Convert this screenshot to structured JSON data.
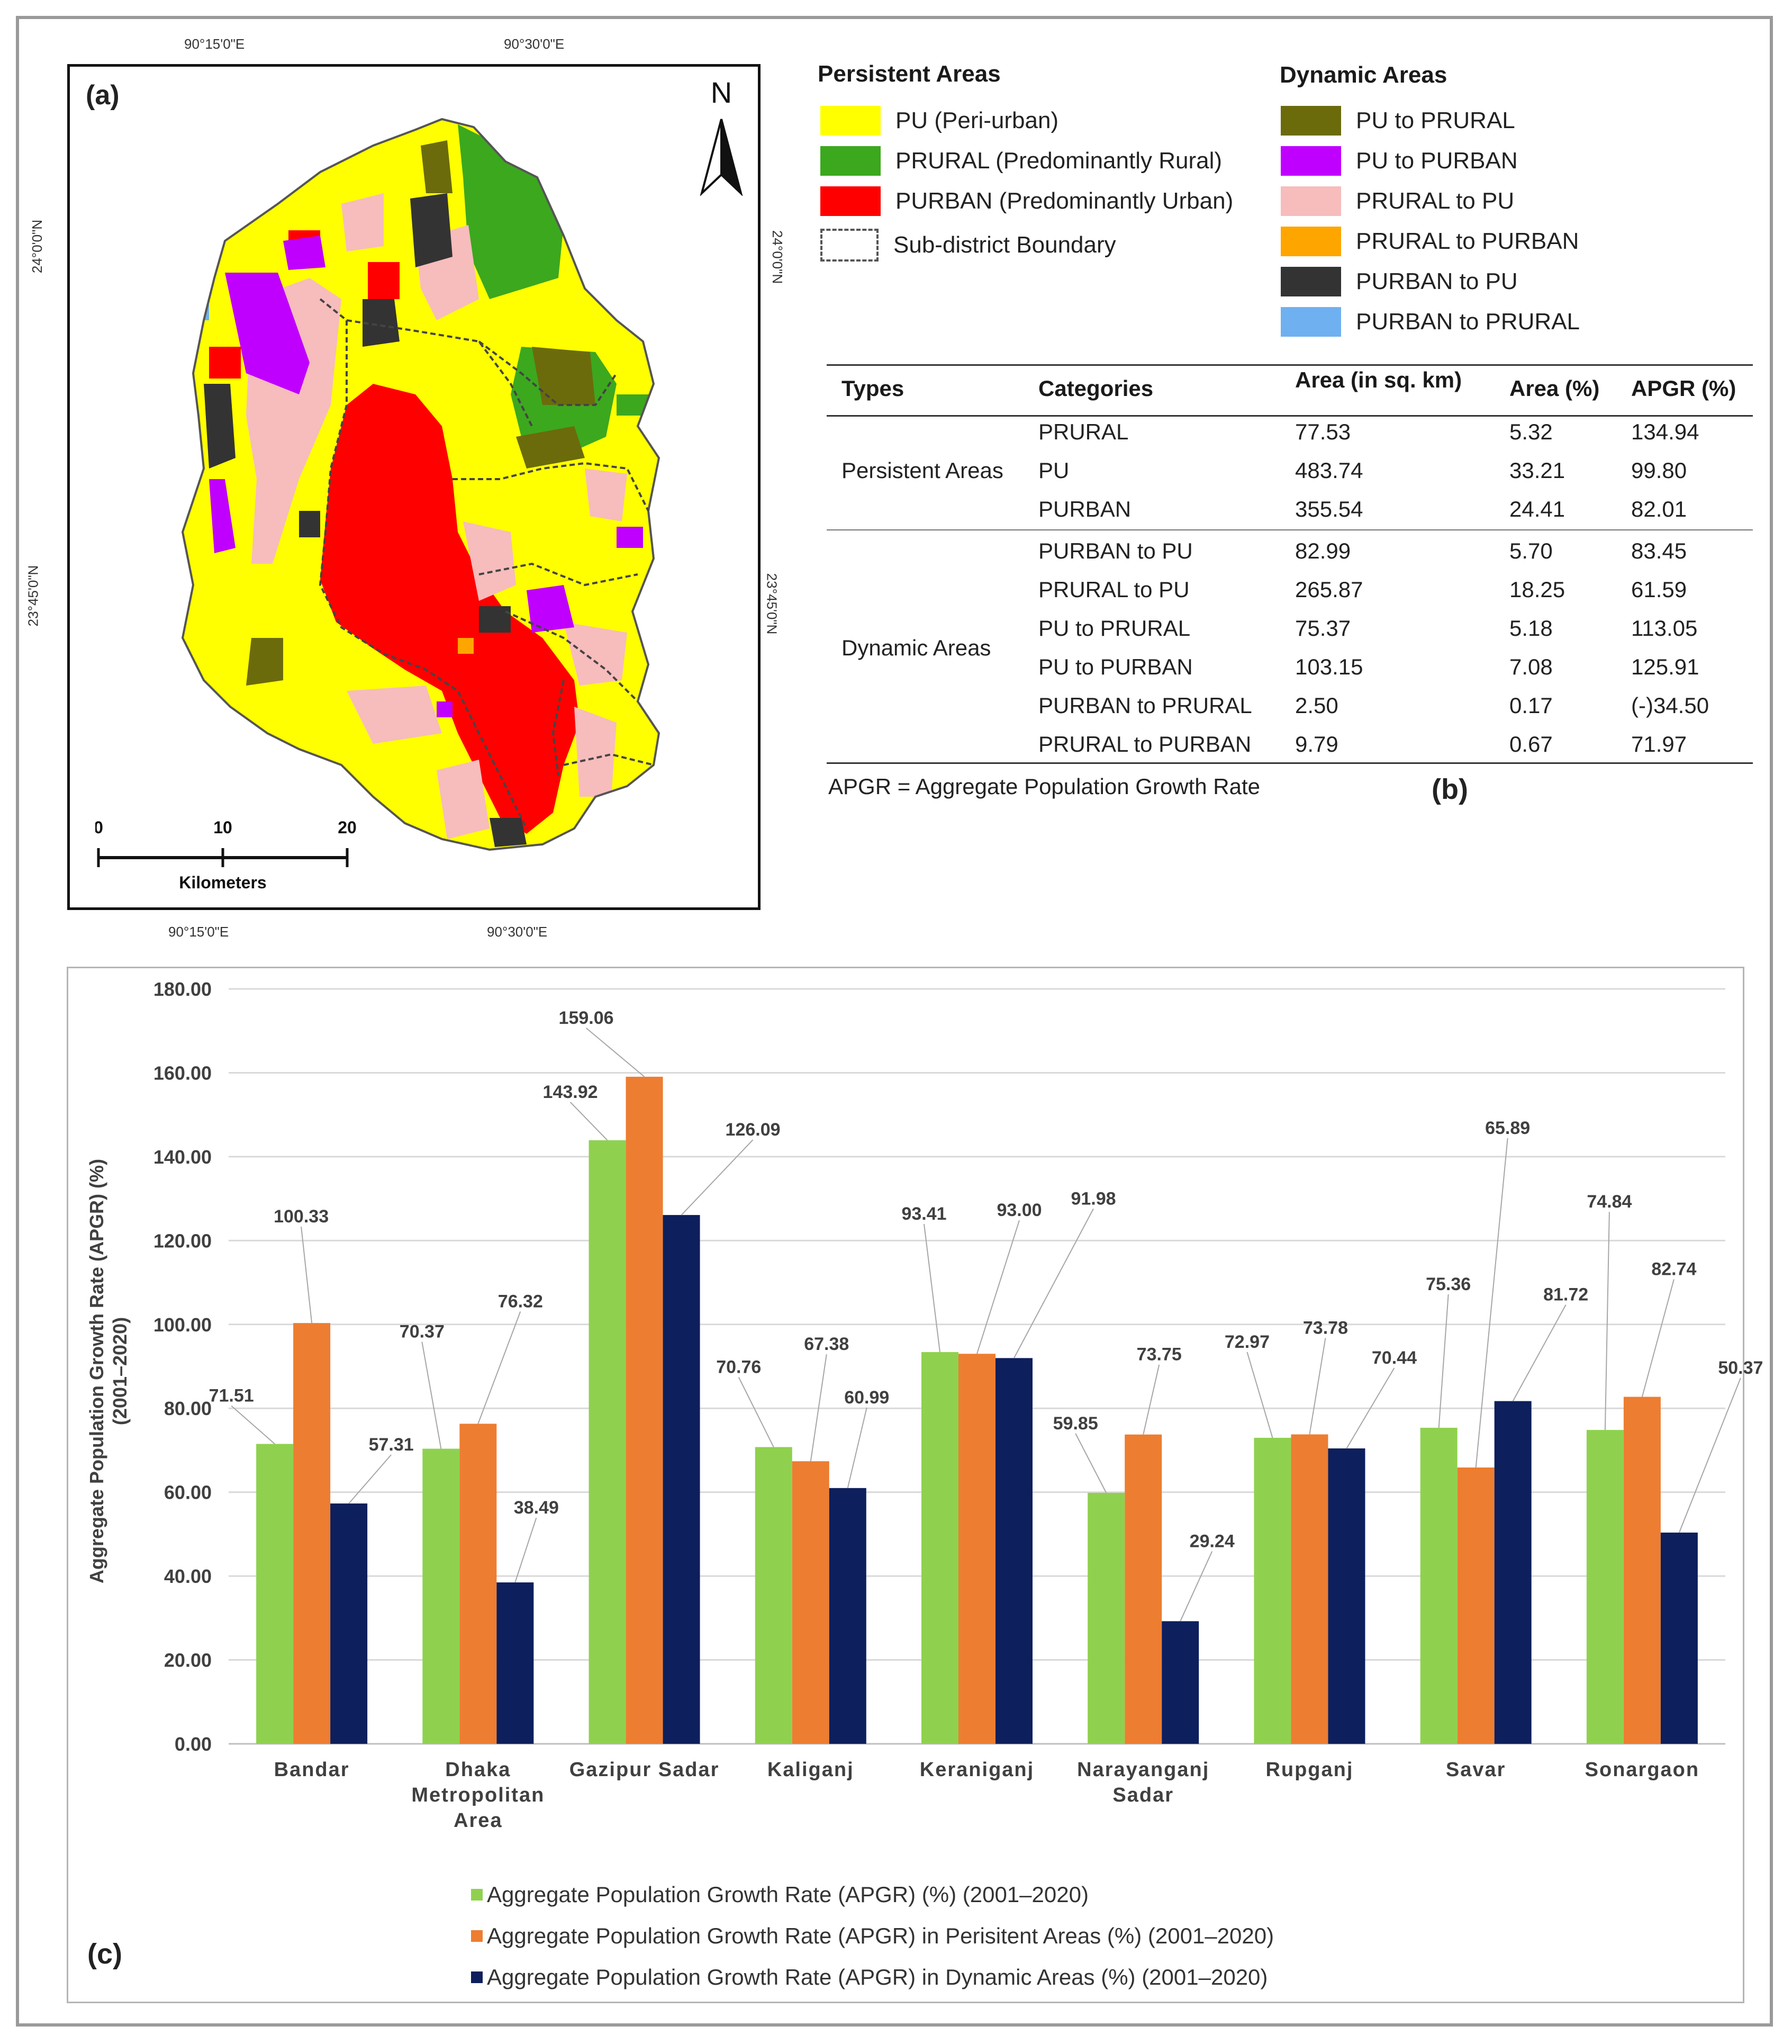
{
  "map": {
    "panel_label": "(a)",
    "north_label": "N",
    "coords": {
      "top1": "90°15'0\"E",
      "top2": "90°30'0\"E",
      "bottom1": "90°15'0\"E",
      "bottom2": "90°30'0\"E",
      "left1": "24°0'0\"N",
      "left2": "23°45'0\"N",
      "right1": "24°0'0\"N",
      "right2": "23°45'0\"N"
    },
    "scale": {
      "t0": "0",
      "t1": "10",
      "t2": "20",
      "unit": "Kilometers"
    }
  },
  "legend": {
    "persistent_title": "Persistent Areas",
    "persistent": [
      {
        "label": "PU (Peri-urban)",
        "color": "#ffff00"
      },
      {
        "label": "PRURAL (Predominantly Rural)",
        "color": "#3ca81e"
      },
      {
        "label": "PURBAN (Predominantly Urban)",
        "color": "#ff0000"
      },
      {
        "label": "Sub-district Boundary",
        "color": "#ffffff"
      }
    ],
    "dynamic_title": "Dynamic Areas",
    "dynamic": [
      {
        "label": "PU to PRURAL",
        "color": "#6b6b0c"
      },
      {
        "label": "PU to PURBAN",
        "color": "#c000ff"
      },
      {
        "label": "PRURAL to PU",
        "color": "#f7bcbc"
      },
      {
        "label": "PRURAL to PURBAN",
        "color": "#ffa500"
      },
      {
        "label": "PURBAN to PU",
        "color": "#333333"
      },
      {
        "label": "PURBAN to PRURAL",
        "color": "#6fb0f0"
      }
    ]
  },
  "table": {
    "headers": [
      "Types",
      "Categories",
      "Area (in sq. km)",
      "Area (%)",
      "APGR (%)"
    ],
    "groups": [
      {
        "type": "Persistent Areas",
        "rows": [
          [
            "PRURAL",
            "77.53",
            "5.32",
            "134.94"
          ],
          [
            "PU",
            "483.74",
            "33.21",
            "99.80"
          ],
          [
            "PURBAN",
            "355.54",
            "24.41",
            "82.01"
          ]
        ]
      },
      {
        "type": "Dynamic Areas",
        "rows": [
          [
            "PURBAN to PU",
            "82.99",
            "5.70",
            "83.45"
          ],
          [
            "PRURAL to PU",
            "265.87",
            "18.25",
            "61.59"
          ],
          [
            "PU to PRURAL",
            "75.37",
            "5.18",
            "113.05"
          ],
          [
            "PU to PURBAN",
            "103.15",
            "7.08",
            "125.91"
          ],
          [
            "PURBAN to PRURAL",
            "2.50",
            "0.17",
            "(-)34.50"
          ],
          [
            "PRURAL to PURBAN",
            "9.79",
            "0.67",
            "71.97"
          ]
        ]
      }
    ],
    "note": "APGR = Aggregate Population Growth Rate",
    "panel_label": "(b)"
  },
  "chart_data": {
    "type": "bar",
    "panel_label": "(c)",
    "ylabel": "Aggregate Population Growth Rate (APGR) (%) (2001–2020)",
    "ylim": [
      0,
      180
    ],
    "yticks": [
      "0.00",
      "20.00",
      "40.00",
      "60.00",
      "80.00",
      "100.00",
      "120.00",
      "140.00",
      "160.00",
      "180.00"
    ],
    "categories": [
      "Bandar",
      "Dhaka Metropolitan Area",
      "Gazipur Sadar",
      "Kaliganj",
      "Keraniganj",
      "Narayanganj Sadar",
      "Rupganj",
      "Savar",
      "Sonargaon"
    ],
    "category_lines": [
      [
        "Bandar"
      ],
      [
        "Dhaka",
        "Metropolitan",
        "Area"
      ],
      [
        "Gazipur Sadar"
      ],
      [
        "Kaliganj"
      ],
      [
        "Keraniganj"
      ],
      [
        "Narayanganj",
        "Sadar"
      ],
      [
        "Rupganj"
      ],
      [
        "Savar"
      ],
      [
        "Sonargaon"
      ]
    ],
    "series": [
      {
        "name": "Aggregate Population Growth Rate (APGR) (%) (2001–2020)",
        "color": "#8fd14f",
        "values": [
          71.51,
          70.37,
          143.92,
          70.76,
          93.41,
          59.85,
          72.97,
          75.36,
          74.84
        ],
        "labels": [
          "71.51",
          "70.37",
          "143.92",
          "70.76",
          "93.41",
          "59.85",
          "72.97",
          "75.36",
          "74.84"
        ]
      },
      {
        "name": "Aggregate Population Growth Rate (APGR) in Perisitent Areas (%) (2001–2020)",
        "color": "#ed7d31",
        "values": [
          100.33,
          76.32,
          159.06,
          67.38,
          93.0,
          73.75,
          73.78,
          65.89,
          82.74
        ],
        "labels": [
          "100.33",
          "76.32",
          "159.06",
          "67.38",
          "93.00",
          "73.75",
          "73.78",
          "65.89",
          "82.74"
        ]
      },
      {
        "name": "Aggregate Population Growth Rate (APGR) in Dynamic Areas (%) (2001–2020)",
        "color": "#0d1f5c",
        "values": [
          57.31,
          38.49,
          126.09,
          60.99,
          91.98,
          29.24,
          70.44,
          81.72,
          50.37
        ],
        "labels": [
          "57.31",
          "38.49",
          "126.09",
          "60.99",
          "91.98",
          "29.24",
          "70.44",
          "81.72",
          "50.37"
        ]
      }
    ],
    "legend_position": "bottom-left",
    "grid": true
  }
}
